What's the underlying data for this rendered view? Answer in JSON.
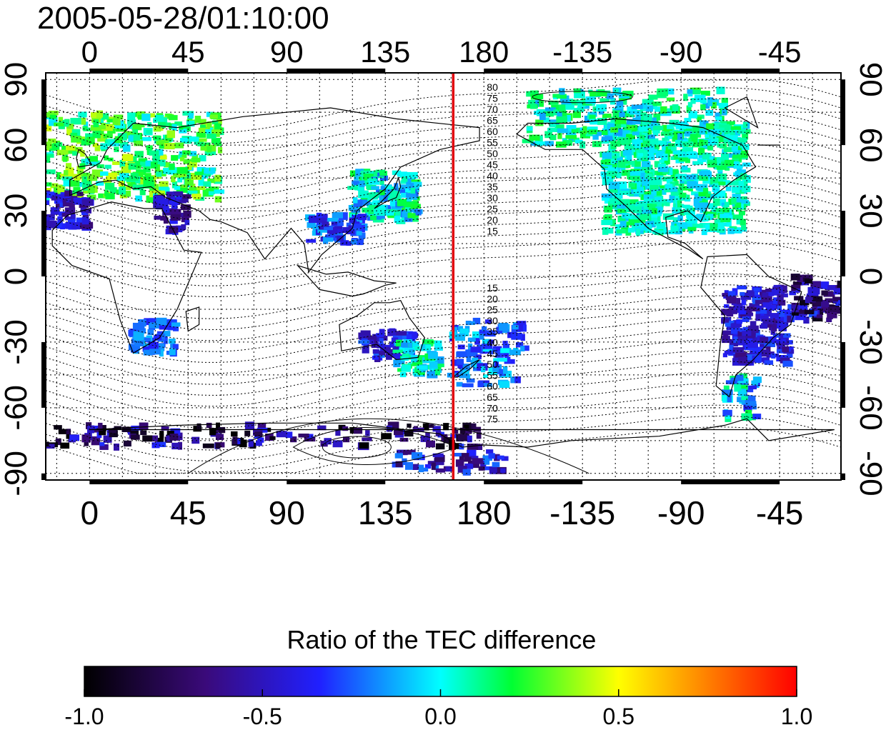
{
  "figure": {
    "timestamp": "2005-05-28/01:10:00",
    "colorbar_title": "Ratio of the TEC difference",
    "red_line_color": "#e0000a"
  },
  "axes": {
    "lon_labels": [
      "0",
      "45",
      "90",
      "135",
      "180",
      "-135",
      "-90",
      "-45"
    ],
    "lat_labels": [
      "90",
      "60",
      "30",
      "0",
      "-30",
      "-60",
      "-90"
    ],
    "lon_ticks_deg": [
      0,
      45,
      90,
      135,
      180,
      225,
      270,
      315
    ],
    "lat_ticks_deg": [
      90,
      60,
      30,
      0,
      -30,
      -60,
      -90
    ],
    "lon_range_deg": [
      -20,
      343
    ],
    "lat_range_deg": [
      -93,
      93
    ],
    "red_line_lon_deg": 166
  },
  "contour_labels": {
    "north": [
      "80",
      "75",
      "70",
      "65",
      "60",
      "55",
      "50",
      "45",
      "40",
      "35",
      "30",
      "25",
      "20",
      "15"
    ],
    "south": [
      "15",
      "20",
      "25",
      "30",
      "35",
      "40",
      "45",
      "50",
      "55",
      "60",
      "65",
      "70",
      "75"
    ]
  },
  "colorbar": {
    "tick_labels": [
      "-1.0",
      "-0.5",
      "0.0",
      "0.5",
      "1.0"
    ],
    "tick_values": [
      -1.0,
      -0.5,
      0.0,
      0.5,
      1.0
    ],
    "range": [
      -1.0,
      1.0
    ],
    "stops": [
      "#000000",
      "#3a0a7a",
      "#2020ff",
      "#00ffff",
      "#00ff33",
      "#ffff00",
      "#ff0000"
    ]
  }
}
